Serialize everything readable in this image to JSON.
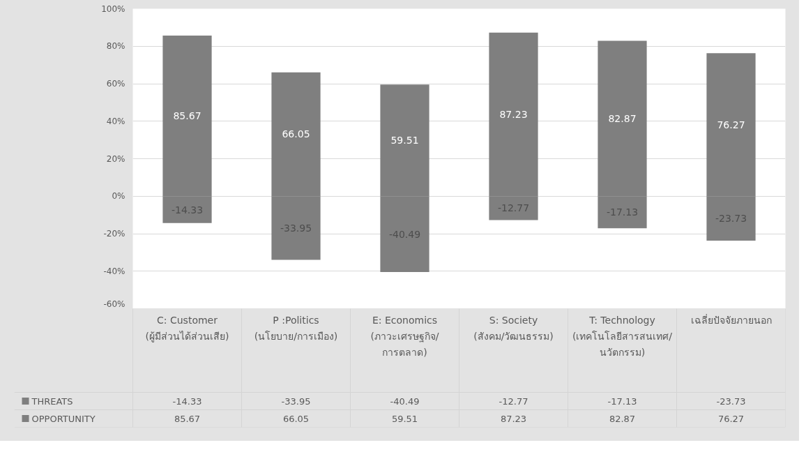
{
  "chart_data": {
    "type": "bar",
    "stacked": true,
    "data_labels": true,
    "grid": "y",
    "legend": "bottom",
    "categories": [
      "C: Customer (ผู้มีส่วนได้ส่วนเสีย)",
      "P :Politics (นโยบาย/การเมือง)",
      "E: Economics (ภาวะเศรษฐกิจ/การตลาด)",
      "S: Society (สังคม/วัฒนธรรม)",
      "T: Technology (เทคโนโลยีสารสนเทศ/นวัตกรรม)",
      "เฉลี่ยปัจจัยภายนอก"
    ],
    "series": [
      {
        "name": "THREATS",
        "color": "#7f7f7f",
        "values": [
          -14.33,
          -33.95,
          -40.49,
          -12.77,
          -17.13,
          -23.73
        ],
        "value_labels": [
          "-14.33",
          "-33.95",
          "-40.49",
          "-12.77",
          "-17.13",
          "-23.73"
        ]
      },
      {
        "name": "OPPORTUNITY",
        "color": "#7f7f7f",
        "values": [
          85.67,
          66.05,
          59.51,
          87.23,
          82.87,
          76.27
        ],
        "value_labels": [
          "85.67",
          "66.05",
          "59.51",
          "87.23",
          "82.87",
          "76.27"
        ]
      }
    ],
    "ylim": [
      -60,
      100
    ],
    "yticks": [
      {
        "value": -60,
        "label": "-60%"
      },
      {
        "value": -40,
        "label": "-40%"
      },
      {
        "value": -20,
        "label": "-20%"
      },
      {
        "value": 0,
        "label": "0%"
      },
      {
        "value": 20,
        "label": "20%"
      },
      {
        "value": 40,
        "label": "40%"
      },
      {
        "value": 60,
        "label": "60%"
      },
      {
        "value": 80,
        "label": "80%"
      },
      {
        "value": 100,
        "label": "100%"
      }
    ]
  }
}
